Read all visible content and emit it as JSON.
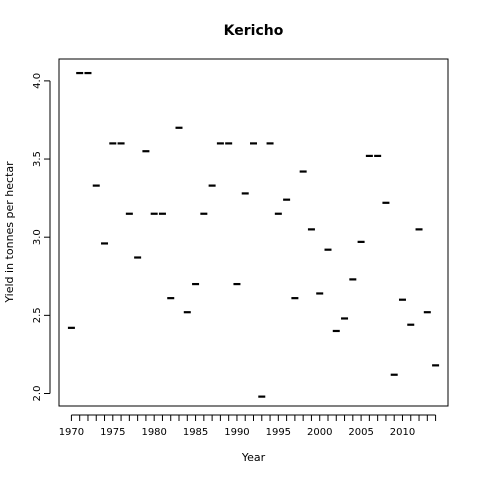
{
  "chart_data": {
    "type": "scatter",
    "title": "Kericho",
    "xlabel": "Year",
    "ylabel": "Yield in tonnes per hectar",
    "xlim": [
      1968.5,
      2015.5
    ],
    "ylim": [
      1.92,
      4.14
    ],
    "grid": false,
    "marker": "horizontal-dash",
    "marker_color": "#000000",
    "x_ticks": [
      1970,
      1975,
      1980,
      1985,
      1990,
      1995,
      2000,
      2005,
      2010
    ],
    "x_tick_labels": [
      "1970",
      "1975",
      "1980",
      "1985",
      "1990",
      "1995",
      "2000",
      "2005",
      "2010"
    ],
    "x_minor_ticks": [
      1970,
      1971,
      1972,
      1973,
      1974,
      1975,
      1976,
      1977,
      1978,
      1979,
      1980,
      1981,
      1982,
      1983,
      1984,
      1985,
      1986,
      1987,
      1988,
      1989,
      1990,
      1991,
      1992,
      1993,
      1994,
      1995,
      1996,
      1997,
      1998,
      1999,
      2000,
      2001,
      2002,
      2003,
      2004,
      2005,
      2006,
      2007,
      2008,
      2009,
      2010,
      2011,
      2012,
      2013,
      2014
    ],
    "y_ticks": [
      2.0,
      2.5,
      3.0,
      3.5,
      4.0
    ],
    "y_tick_labels": [
      "2.0",
      "2.5",
      "3.0",
      "3.5",
      "4.0"
    ],
    "x": [
      1970,
      1971,
      1972,
      1973,
      1974,
      1975,
      1976,
      1977,
      1978,
      1979,
      1980,
      1981,
      1982,
      1983,
      1984,
      1985,
      1986,
      1987,
      1988,
      1989,
      1990,
      1991,
      1992,
      1993,
      1994,
      1995,
      1996,
      1997,
      1998,
      1999,
      2000,
      2001,
      2002,
      2003,
      2004,
      2005,
      2006,
      2007,
      2008,
      2009,
      2010,
      2011,
      2012,
      2013,
      2014
    ],
    "y": [
      2.42,
      4.05,
      4.05,
      3.33,
      2.96,
      3.6,
      3.6,
      3.15,
      2.87,
      3.55,
      3.15,
      3.15,
      2.61,
      3.7,
      2.52,
      2.7,
      3.15,
      3.33,
      3.6,
      3.6,
      2.7,
      3.28,
      3.6,
      1.98,
      3.6,
      3.15,
      3.24,
      2.61,
      3.42,
      3.05,
      2.64,
      2.92,
      2.4,
      2.48,
      2.73,
      2.97,
      3.52,
      3.52,
      3.22,
      2.12,
      2.6,
      2.44,
      3.05,
      2.52,
      2.18
    ]
  }
}
